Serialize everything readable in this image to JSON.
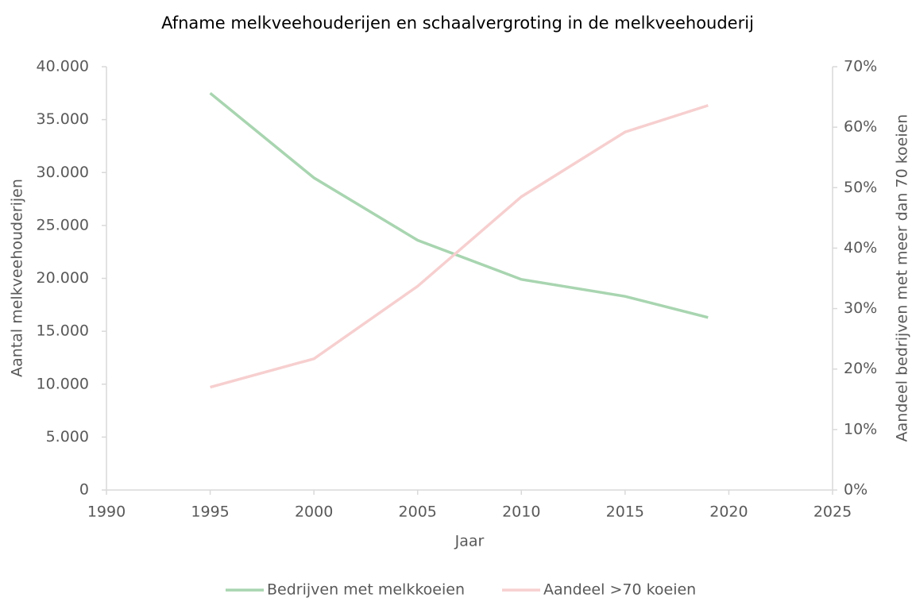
{
  "chart_data": {
    "type": "line",
    "title": "Afname melkveehouderijen en schaalvergroting in de melkveehouderij",
    "x_label": "Jaar",
    "y_label": "Aantal melkveehouderijen",
    "y2_label": "Aandeel bedrijven met meer dan 70 koeien",
    "x": [
      1995,
      2000,
      2005,
      2010,
      2015,
      2019
    ],
    "series": [
      {
        "name": "Bedrijven met melkkoeien",
        "color": "#a8d5b0",
        "values": [
          37500,
          29500,
          23600,
          19900,
          18300,
          16300
        ]
      },
      {
        "name": "Aandeel >70 koeien",
        "color": "#f7cfcf",
        "axis": "y2",
        "values": [
          17,
          21.7,
          33.7,
          48.5,
          59.2,
          63.6
        ]
      }
    ],
    "xlim": [
      1990,
      2025
    ],
    "xticks": [
      1990,
      1995,
      2000,
      2005,
      2010,
      2015,
      2020,
      2025
    ],
    "ylim": [
      0,
      40000
    ],
    "yticks": [
      0,
      {
        "value": 5000,
        "label": "5.000"
      },
      {
        "value": 10000,
        "label": "10.000"
      },
      {
        "value": 15000,
        "label": "15.000"
      },
      {
        "value": 20000,
        "label": "20.000"
      },
      {
        "value": 25000,
        "label": "25.000"
      },
      {
        "value": 30000,
        "label": "30.000"
      },
      {
        "value": 35000,
        "label": "35.000"
      },
      {
        "value": 40000,
        "label": "40.000"
      }
    ],
    "y2lim": [
      0,
      70
    ],
    "y2ticks": [
      {
        "value": 0,
        "label": "0%"
      },
      {
        "value": 10,
        "label": "10%"
      },
      {
        "value": 20,
        "label": "20%"
      },
      {
        "value": 30,
        "label": "30%"
      },
      {
        "value": 40,
        "label": "40%"
      },
      {
        "value": 50,
        "label": "50%"
      },
      {
        "value": 60,
        "label": "60%"
      },
      {
        "value": 70,
        "label": "70%"
      }
    ],
    "legend": "bottom"
  }
}
